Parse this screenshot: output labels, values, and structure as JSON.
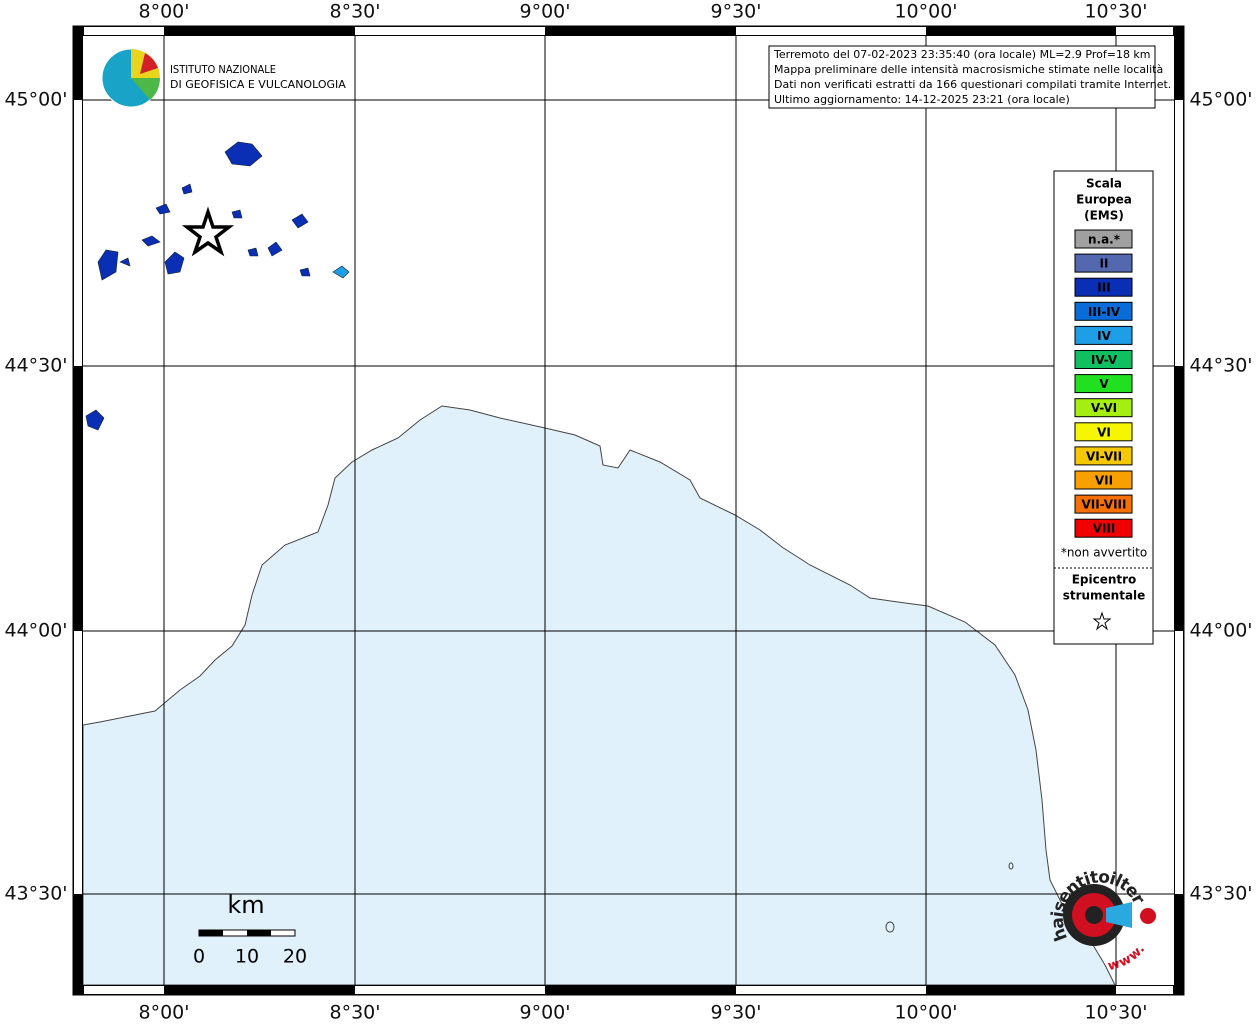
{
  "map": {
    "lon_labels": [
      "8°00'",
      "8°30'",
      "9°00'",
      "9°30'",
      "10°00'",
      "10°30'"
    ],
    "lat_labels": [
      "45°00'",
      "44°30'",
      "44°00'",
      "43°30'"
    ],
    "info_lines": [
      "Terremoto del 07-02-2023 23:35:40 (ora locale) ML=2.9 Prof=18 km",
      "Mappa preliminare delle intensità macrosismiche stimate nelle località",
      "Dati non verificati estratti da 166 questionari compilati tramite Internet.",
      "Ultimo aggiornamento: 14-12-2025 23:21 (ora locale)"
    ],
    "logo_lines": [
      "ISTITUTO NAZIONALE",
      "DI GEOFISICA E VULCANOLOGIA"
    ],
    "legend": {
      "title_lines": [
        "Scala",
        "Europea",
        "(EMS)"
      ],
      "items": [
        {
          "label": "n.a.*",
          "color": "#a0a0a0"
        },
        {
          "label": "II",
          "color": "#5468b0"
        },
        {
          "label": "III",
          "color": "#0a2eb4"
        },
        {
          "label": "III-IV",
          "color": "#0a6cd8"
        },
        {
          "label": "IV",
          "color": "#1e9ee6"
        },
        {
          "label": "IV-V",
          "color": "#10c060"
        },
        {
          "label": "V",
          "color": "#20e020"
        },
        {
          "label": "V-VI",
          "color": "#a4ee10"
        },
        {
          "label": "VI",
          "color": "#f6f600"
        },
        {
          "label": "VI-VII",
          "color": "#f6c800"
        },
        {
          "label": "VII",
          "color": "#f8a000"
        },
        {
          "label": "VII-VIII",
          "color": "#f87000"
        },
        {
          "label": "VIII",
          "color": "#f00000"
        }
      ],
      "note": "*non avvertito",
      "epicenter_lines": [
        "Epicentro",
        "strumentale"
      ]
    },
    "scale_bar": {
      "unit": "km",
      "labels": [
        "0",
        "10",
        "20"
      ]
    },
    "watermark": {
      "main": "haisentitoilterremoto.it",
      "prefix": "www."
    }
  }
}
